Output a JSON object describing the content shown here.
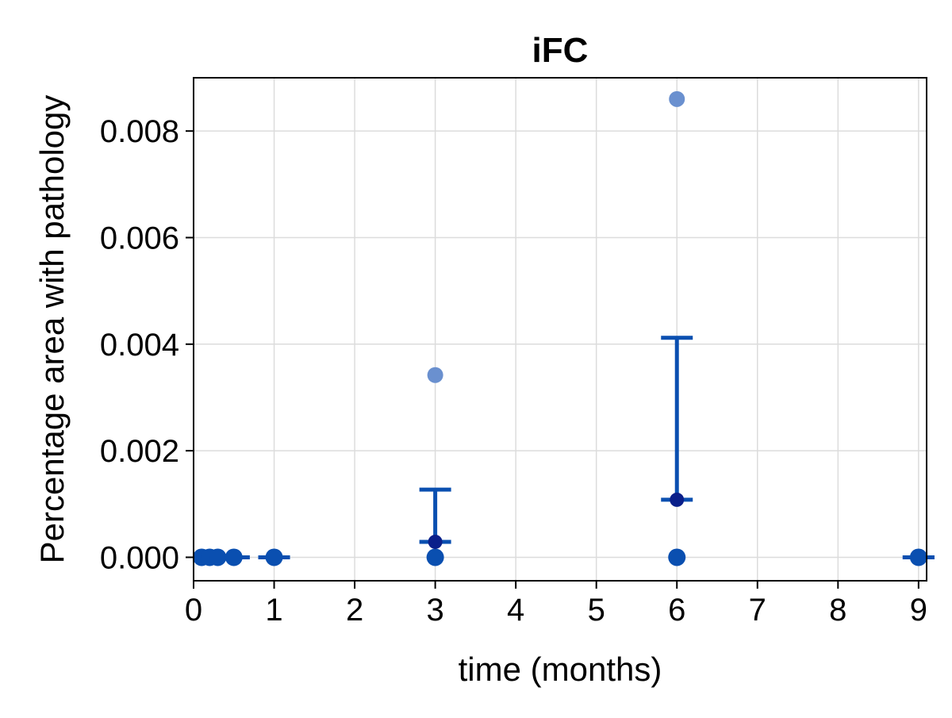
{
  "chart_data": {
    "type": "scatter",
    "title": "iFC",
    "xlabel": "time (months)",
    "ylabel": "Percentage area with pathology",
    "xlim": [
      0,
      9.1
    ],
    "ylim": [
      -0.00044,
      0.009
    ],
    "x_ticks": [
      "0",
      "1",
      "2",
      "3",
      "4",
      "5",
      "6",
      "7",
      "8",
      "9"
    ],
    "y_ticks": [
      "0.000",
      "0.002",
      "0.004",
      "0.006",
      "0.008"
    ],
    "x_tick_values": [
      0,
      1,
      2,
      3,
      4,
      5,
      6,
      7,
      8,
      9
    ],
    "y_tick_values": [
      0.0,
      0.002,
      0.004,
      0.006,
      0.008
    ],
    "grid": true,
    "colors": {
      "point": "#0a4fb0",
      "outlier": "#6a90cf",
      "mean_point": "#0a1f8a",
      "error_bar": "#0a4fb0",
      "grid": "#dcdcdc",
      "frame": "#000000"
    },
    "points": [
      {
        "x": 0.1,
        "y": 0.0
      },
      {
        "x": 0.2,
        "y": 0.0
      },
      {
        "x": 0.3,
        "y": 0.0
      },
      {
        "x": 0.5,
        "y": 0.0
      },
      {
        "x": 1.0,
        "y": 0.0
      },
      {
        "x": 3.0,
        "y": 0.0
      },
      {
        "x": 6.0,
        "y": 0.0
      },
      {
        "x": 9.0,
        "y": 0.0
      }
    ],
    "outliers": [
      {
        "x": 3.0,
        "y": 0.00342
      },
      {
        "x": 6.0,
        "y": 0.0086
      }
    ],
    "means": [
      {
        "x": 3.0,
        "y": 0.00029
      },
      {
        "x": 6.0,
        "y": 0.00108
      }
    ],
    "error_bars": [
      {
        "x": 0.5,
        "low": 0.0,
        "high": 0.0
      },
      {
        "x": 1.0,
        "low": 0.0,
        "high": 0.0
      },
      {
        "x": 3.0,
        "low": 0.00029,
        "high": 0.00127
      },
      {
        "x": 6.0,
        "low": 0.00108,
        "high": 0.00412
      },
      {
        "x": 9.0,
        "low": 0.0,
        "high": 0.0
      }
    ]
  }
}
